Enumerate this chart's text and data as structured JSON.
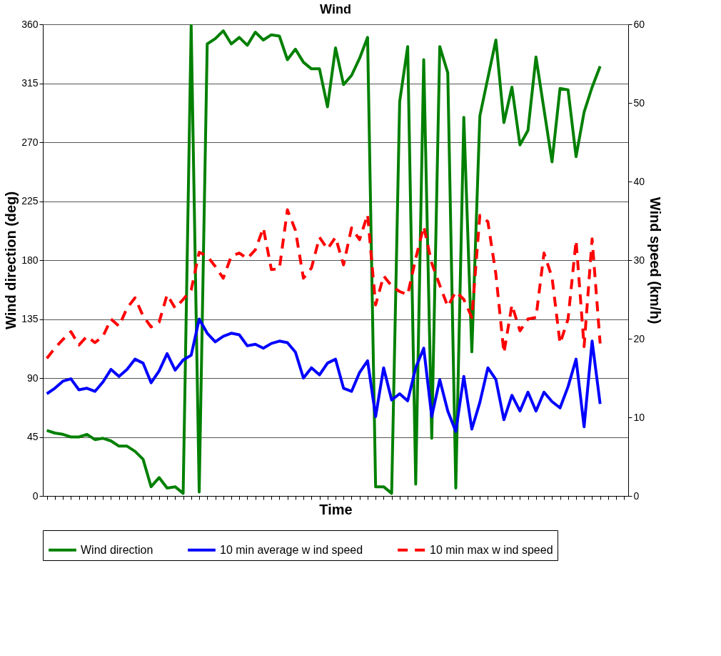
{
  "chart_data": {
    "type": "line",
    "title": "Wind",
    "xlabel": "Time",
    "ylabel": "Wind direction (deg)",
    "y2label": "Wind speed (km/h)",
    "categories": [
      null,
      null,
      null,
      null,
      null,
      null,
      null,
      null,
      null,
      null,
      null,
      null,
      null,
      null,
      null,
      null,
      null,
      null,
      null,
      null,
      null,
      null,
      null,
      null,
      null,
      null,
      null,
      null,
      null,
      null,
      null,
      null,
      null,
      null,
      null,
      null,
      null,
      null,
      null,
      null,
      null,
      null,
      null,
      null,
      null,
      null,
      null,
      null,
      null,
      null,
      null,
      null,
      null,
      null,
      null,
      null,
      null,
      null,
      null,
      null,
      null,
      null,
      null,
      null,
      null,
      null,
      null,
      null,
      null,
      null,
      null,
      null,
      null
    ],
    "ylim": [
      0,
      360
    ],
    "yticks": [
      0,
      45,
      90,
      135,
      180,
      225,
      270,
      315,
      360
    ],
    "y2lim": [
      0,
      60
    ],
    "y2ticks": [
      0,
      10,
      20,
      30,
      40,
      50,
      60
    ],
    "grid": "y",
    "legend": "bottom",
    "series": [
      {
        "name": "Wind direction",
        "color": "#008000",
        "line_style": "solid",
        "values": [
          50,
          48,
          47,
          45,
          45,
          47,
          43,
          44,
          42,
          38,
          38,
          34,
          28,
          7,
          14,
          6,
          7,
          2,
          359,
          3,
          345,
          349,
          355,
          345,
          350,
          344,
          354,
          348,
          352,
          351,
          333,
          341,
          331,
          326,
          326,
          297,
          342,
          314,
          321,
          334,
          350,
          7,
          7,
          2,
          301,
          343,
          9,
          333,
          44,
          343,
          323,
          6,
          289,
          110,
          290,
          319,
          348,
          285,
          312,
          268,
          279,
          335,
          295,
          255,
          311,
          310,
          259,
          293,
          312,
          328,
          null,
          null,
          null
        ]
      },
      {
        "name": "10 min average w ind speed",
        "color": "#0000ff",
        "line_style": "solid",
        "axis": "y2",
        "values": [
          13.0,
          13.7,
          14.6,
          14.9,
          13.5,
          13.7,
          13.3,
          14.5,
          16.1,
          15.2,
          16.1,
          17.4,
          16.9,
          14.4,
          15.9,
          18.1,
          16.0,
          17.3,
          17.9,
          22.5,
          20.7,
          19.6,
          20.3,
          20.7,
          20.5,
          19.1,
          19.3,
          18.8,
          19.4,
          19.7,
          19.5,
          18.3,
          15.0,
          16.3,
          15.4,
          16.9,
          17.4,
          13.7,
          13.3,
          15.7,
          17.2,
          10.1,
          16.3,
          12.2,
          13.0,
          12.1,
          16.3,
          18.8,
          10.1,
          14.8,
          10.8,
          8.2,
          15.2,
          8.5,
          11.9,
          16.3,
          14.8,
          9.7,
          12.8,
          10.8,
          13.2,
          10.8,
          13.2,
          12.0,
          11.2,
          13.9,
          17.4,
          8.8,
          19.7,
          11.7,
          null,
          null,
          null
        ]
      },
      {
        "name": "10 min max w ind speed",
        "color": "#ff0000",
        "line_style": "dashed",
        "axis": "y2",
        "values": [
          17.5,
          18.8,
          19.9,
          20.9,
          19.2,
          20.3,
          19.5,
          20.3,
          22.5,
          21.6,
          23.9,
          25.2,
          22.9,
          21.5,
          22.1,
          25.6,
          23.9,
          25.0,
          26.2,
          31.0,
          30.5,
          29.2,
          27.7,
          30.5,
          30.9,
          30.2,
          31.3,
          34.1,
          28.8,
          28.9,
          36.4,
          33.8,
          27.7,
          29.0,
          32.9,
          31.4,
          32.9,
          29.4,
          34.1,
          32.6,
          35.8,
          24.3,
          28.0,
          26.7,
          26.0,
          25.6,
          30.2,
          34.3,
          29.6,
          26.8,
          24.1,
          26.0,
          25.0,
          22.7,
          35.7,
          34.9,
          28.2,
          18.2,
          24.3,
          21.0,
          22.5,
          22.7,
          30.9,
          27.8,
          19.4,
          22.5,
          32.5,
          19.0,
          32.7,
          19.4,
          null,
          null,
          null
        ]
      }
    ]
  }
}
